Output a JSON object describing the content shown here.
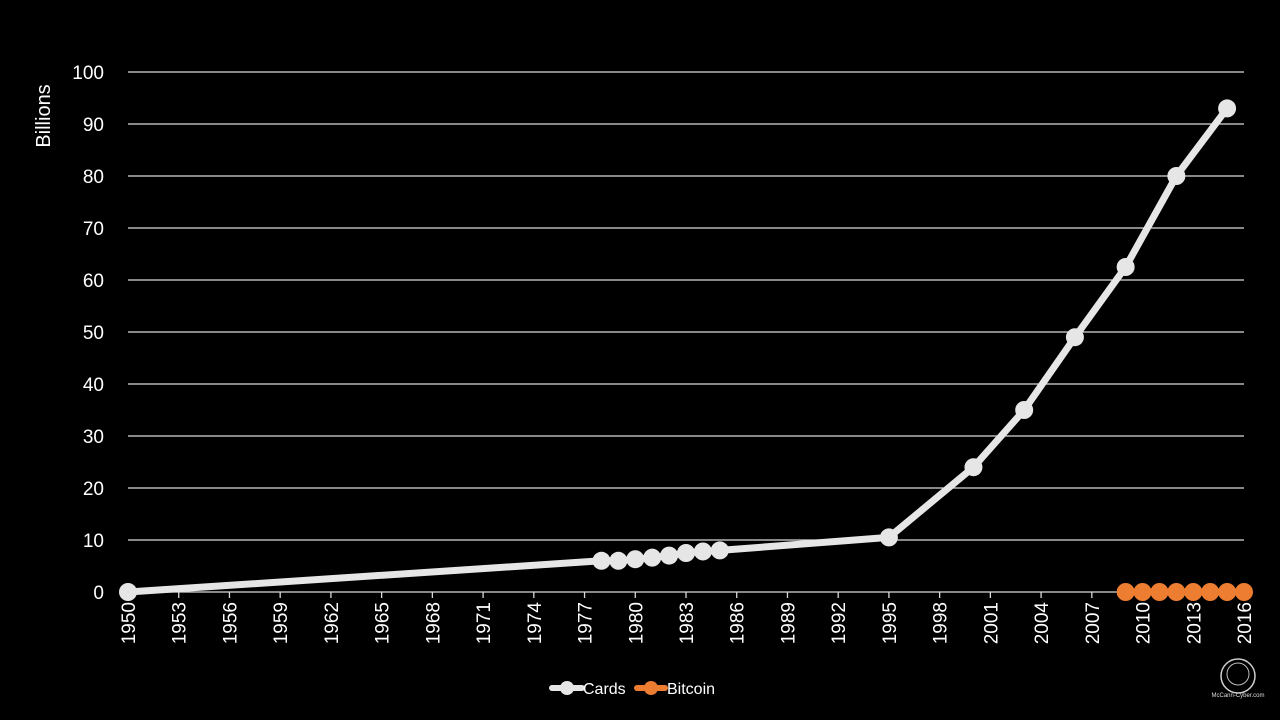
{
  "chart_data": {
    "type": "line",
    "title": "",
    "ylabel": "Billions",
    "xlabel": "",
    "ylim": [
      0,
      100
    ],
    "yticks": [
      0,
      10,
      20,
      30,
      40,
      50,
      60,
      70,
      80,
      90,
      100
    ],
    "xlim": [
      1950,
      2016
    ],
    "xtick_labels": [
      "1950",
      "1953",
      "1956",
      "1959",
      "1962",
      "1965",
      "1968",
      "1971",
      "1974",
      "1977",
      "1980",
      "1983",
      "1986",
      "1989",
      "1992",
      "1995",
      "1998",
      "2001",
      "2004",
      "2007",
      "2010",
      "2013",
      "2016"
    ],
    "grid": true,
    "legend_position": "bottom",
    "series": [
      {
        "name": "Cards",
        "color": "#e6e6e6",
        "x": [
          1950,
          1978,
          1979,
          1980,
          1981,
          1982,
          1983,
          1984,
          1985,
          1995,
          2000,
          2003,
          2006,
          2009,
          2012,
          2015
        ],
        "y": [
          0,
          6,
          6,
          6.3,
          6.6,
          7,
          7.5,
          7.8,
          8,
          10.5,
          24,
          35,
          49,
          62.5,
          80,
          93
        ]
      },
      {
        "name": "Bitcoin",
        "color": "#ed7d31",
        "x": [
          2009,
          2010,
          2011,
          2012,
          2013,
          2014,
          2015,
          2016
        ],
        "y": [
          0,
          0,
          0,
          0,
          0,
          0,
          0,
          0
        ]
      }
    ]
  },
  "watermark": {
    "text": "McCann-Cyber.com"
  }
}
